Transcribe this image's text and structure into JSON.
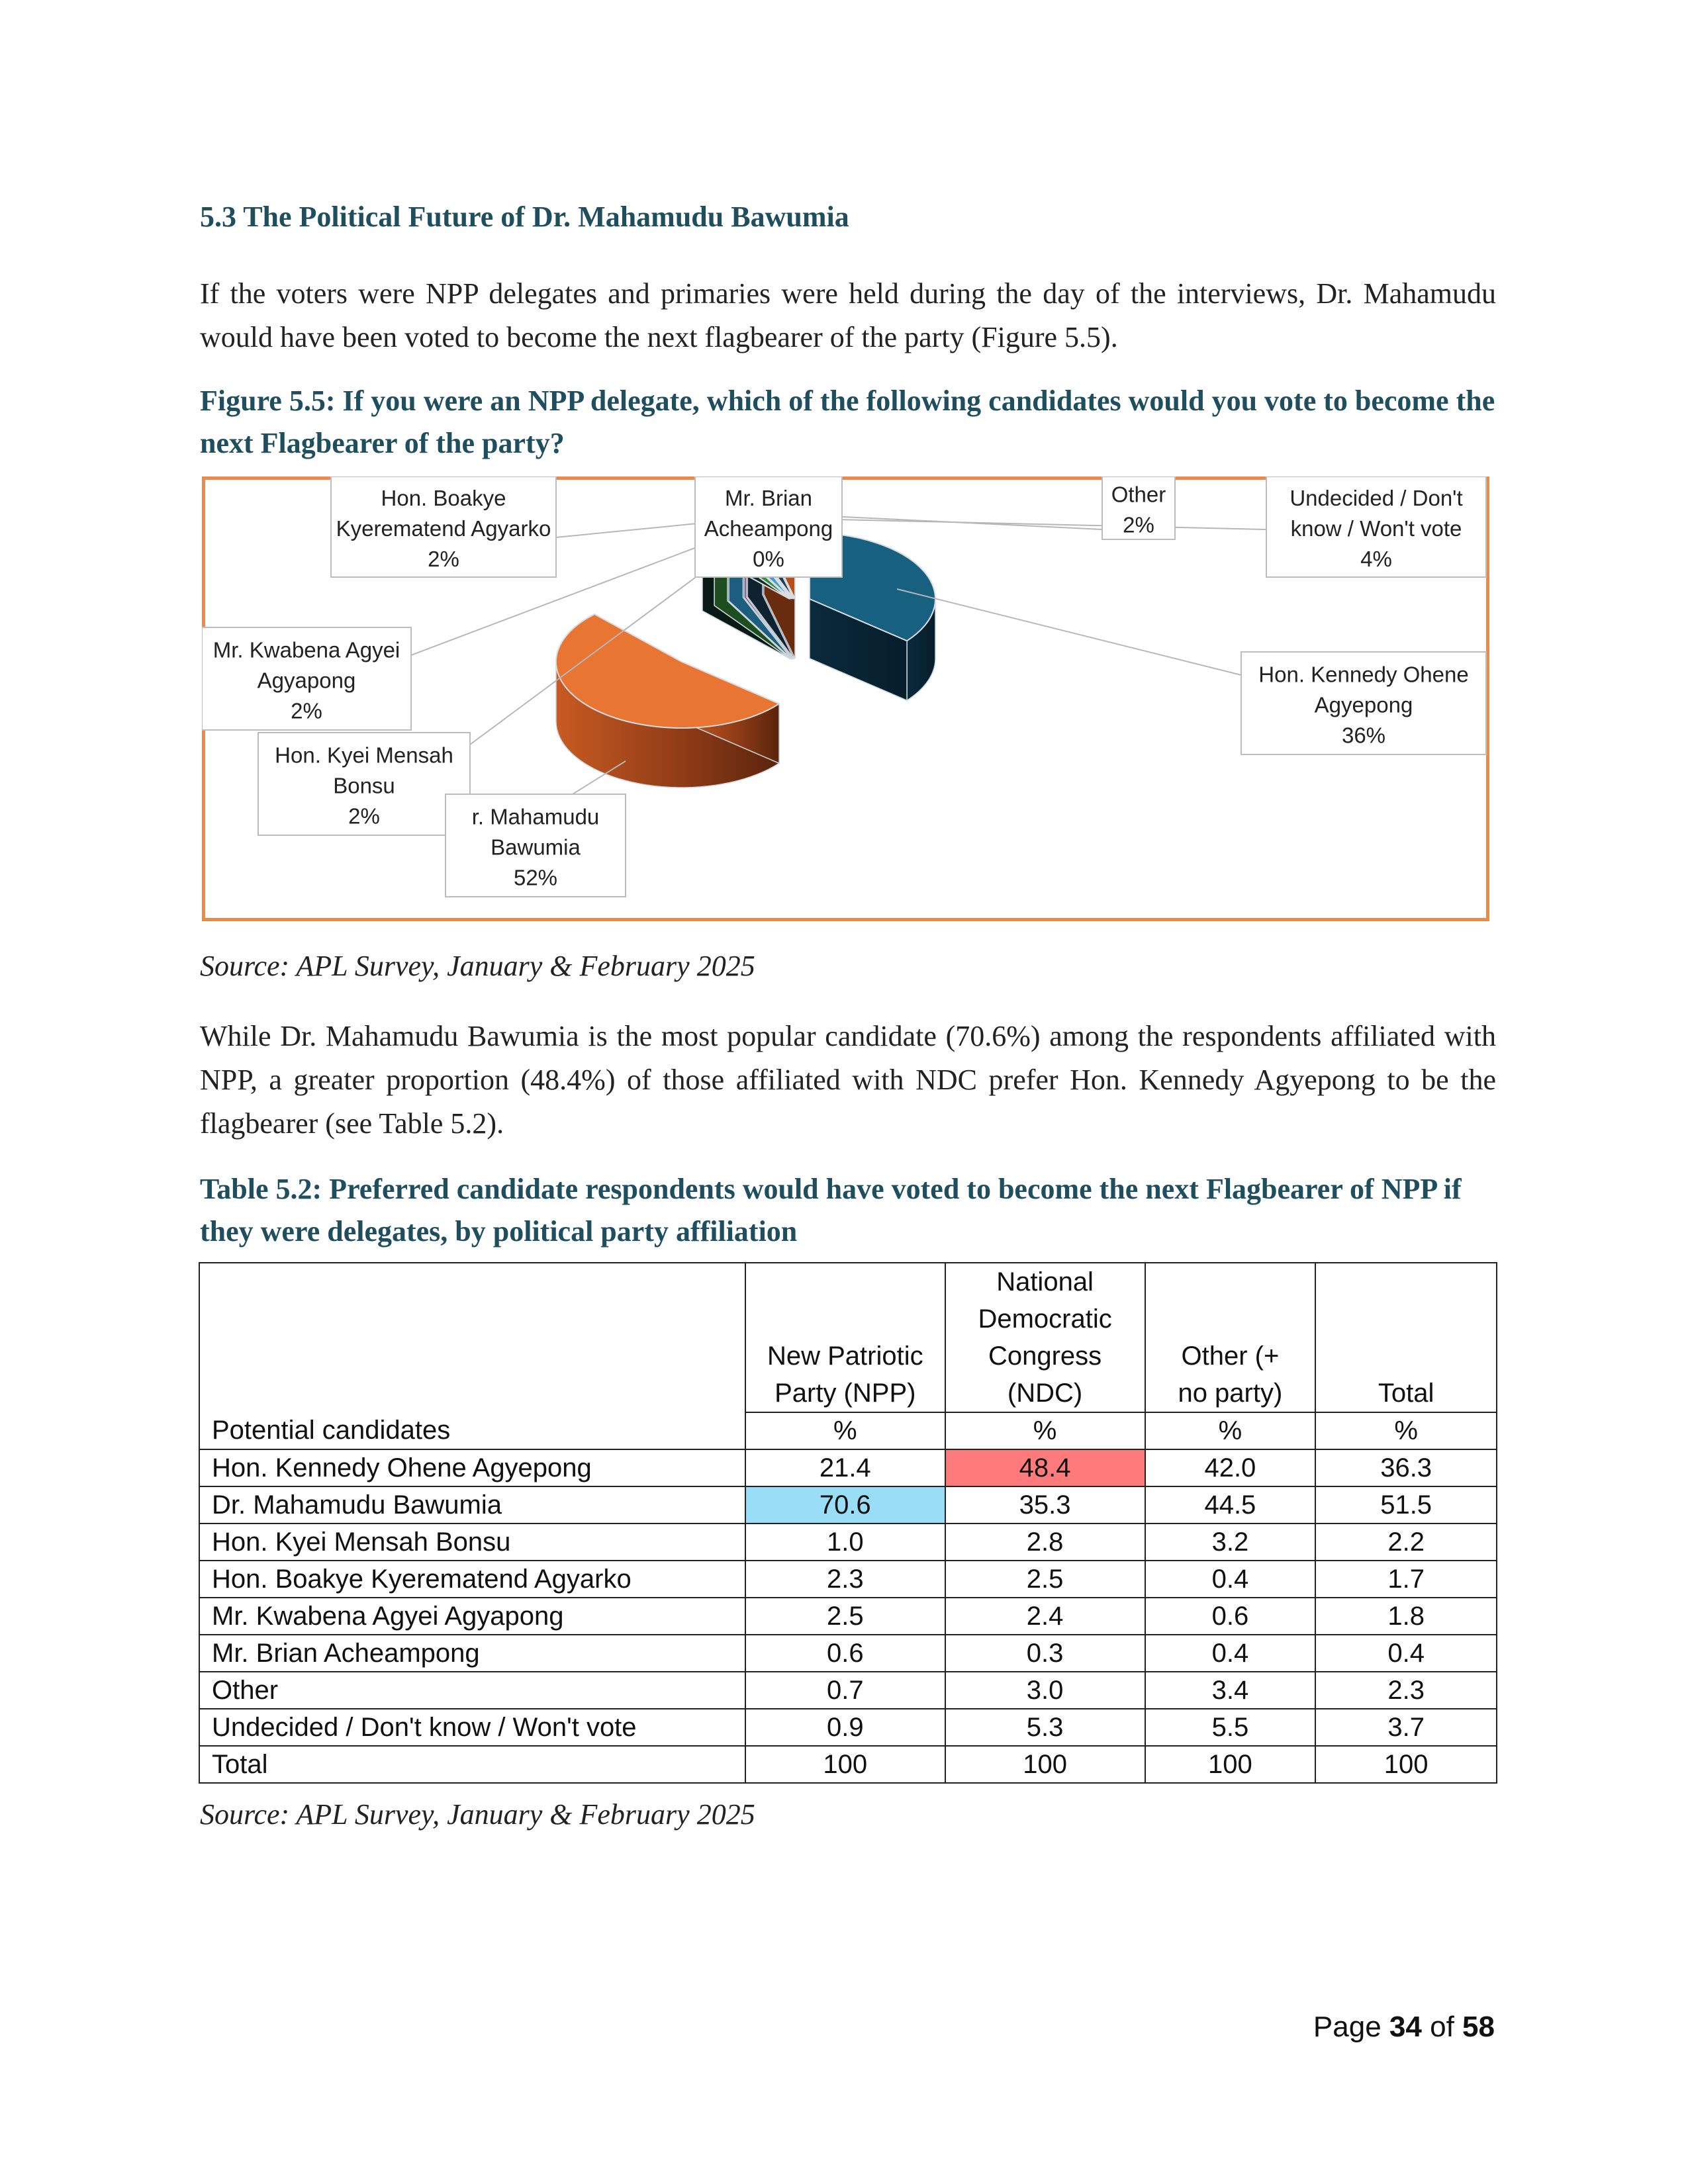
{
  "section": {
    "title": "5.3 The Political Future of Dr. Mahamudu Bawumia",
    "intro": "If the voters were NPP delegates and primaries were held during the day of the interviews, Dr. Mahamudu would have been voted to become the next flagbearer of the party (Figure 5.5)."
  },
  "figure": {
    "caption": "Figure 5.5: If you were an NPP delegate, which of the following candidates would you vote to become the next Flagbearer of the party?",
    "source": "Source: APL Survey, January & February 2025"
  },
  "chart_data": {
    "type": "pie",
    "title": "",
    "slices": [
      {
        "label": "Hon. Kennedy Ohene Agyepong",
        "value": 36,
        "display": "36%",
        "color": "#176080"
      },
      {
        "label": "Dr. Mahamudu Bawumia",
        "value": 52,
        "display": "52%",
        "color": "#e87532"
      },
      {
        "label": "Hon. Kyei Mensah Bonsu",
        "value": 2,
        "display": "2%",
        "color": "#0f2f23"
      },
      {
        "label": "Mr. Kwabena Agyei Agyapong",
        "value": 2,
        "display": "2%",
        "color": "#3a8a3c"
      },
      {
        "label": "Hon. Boakye Kyerematend Agyarko",
        "value": 2,
        "display": "2%",
        "color": "#3aa0d0"
      },
      {
        "label": "Mr. Brian Acheampong",
        "value": 0,
        "display": "0%",
        "color": "#9b3a9b"
      },
      {
        "label": "Other",
        "value": 2,
        "display": "2%",
        "color": "#1f3d55"
      },
      {
        "label": "Undecided / Don't know / Won't vote",
        "value": 4,
        "display": "4%",
        "color": "#b5501d"
      }
    ],
    "labels": {
      "kennedy": [
        "Hon. Kennedy Ohene",
        "Agyepong",
        "36%"
      ],
      "bawumia": [
        "r. Mahamudu",
        "Bawumia",
        "52%"
      ],
      "kyei": [
        "Hon. Kyei Mensah",
        "Bonsu",
        "2%"
      ],
      "kwabena": [
        "Mr. Kwabena Agyei",
        "Agyapong",
        "2%"
      ],
      "boakye": [
        "Hon. Boakye",
        "Kyerematend Agyarko",
        "2%"
      ],
      "brian": [
        "Mr. Brian",
        "Acheampong",
        "0%"
      ],
      "other": [
        "Other",
        "2%"
      ],
      "undecided": [
        "Undecided / Don't",
        "know / Won't vote",
        "4%"
      ]
    }
  },
  "body2": "While Dr. Mahamudu Bawumia is the most popular candidate (70.6%) among the respondents affiliated with NPP, a greater proportion (48.4%) of those affiliated with NDC prefer Hon. Kennedy Agyepong to be the flagbearer (see Table 5.2).",
  "table": {
    "caption": "Table 5.2: Preferred candidate respondents would have voted to become the next Flagbearer of NPP if they were delegates, by political party affiliation",
    "headers": [
      "Potential candidates",
      "New Patriotic Party (NPP)",
      "National Democratic Congress (NDC)",
      "Other (+ no party)",
      "Total"
    ],
    "header_lines": {
      "npp": [
        "New Patriotic",
        "Party (NPP)"
      ],
      "ndc": [
        "National",
        "Democratic",
        "Congress",
        "(NDC)"
      ],
      "other": [
        "Other (+",
        "no party)"
      ],
      "total": [
        "Total"
      ]
    },
    "units": [
      "%",
      "%",
      "%",
      "%"
    ],
    "rows": [
      {
        "name": "Hon. Kennedy Ohene Agyepong",
        "values": [
          "21.4",
          "48.4",
          "42.0",
          "36.3"
        ]
      },
      {
        "name": "Dr. Mahamudu Bawumia",
        "values": [
          "70.6",
          "35.3",
          "44.5",
          "51.5"
        ]
      },
      {
        "name": "Hon. Kyei Mensah Bonsu",
        "values": [
          "1.0",
          "2.8",
          "3.2",
          "2.2"
        ]
      },
      {
        "name": "Hon. Boakye Kyerematend Agyarko",
        "values": [
          "2.3",
          "2.5",
          "0.4",
          "1.7"
        ]
      },
      {
        "name": "Mr. Kwabena Agyei Agyapong",
        "values": [
          "2.5",
          "2.4",
          "0.6",
          "1.8"
        ]
      },
      {
        "name": "Mr. Brian Acheampong",
        "values": [
          "0.6",
          "0.3",
          "0.4",
          "0.4"
        ]
      },
      {
        "name": "Other",
        "values": [
          "0.7",
          "3.0",
          "3.4",
          "2.3"
        ]
      },
      {
        "name": "Undecided / Don't know / Won't vote",
        "values": [
          "0.9",
          "5.3",
          "5.5",
          "3.7"
        ]
      },
      {
        "name": "Total",
        "values": [
          "100",
          "100",
          "100",
          "100"
        ]
      }
    ],
    "highlight_colors": {
      "ndc_kennedy": "#ff7a7a",
      "npp_bawumia": "#99ddf7"
    },
    "source": "Source: APL Survey, January & February 2025"
  },
  "footer": {
    "prefix": "Page",
    "current": "34",
    "sep": "of",
    "total": "58"
  }
}
